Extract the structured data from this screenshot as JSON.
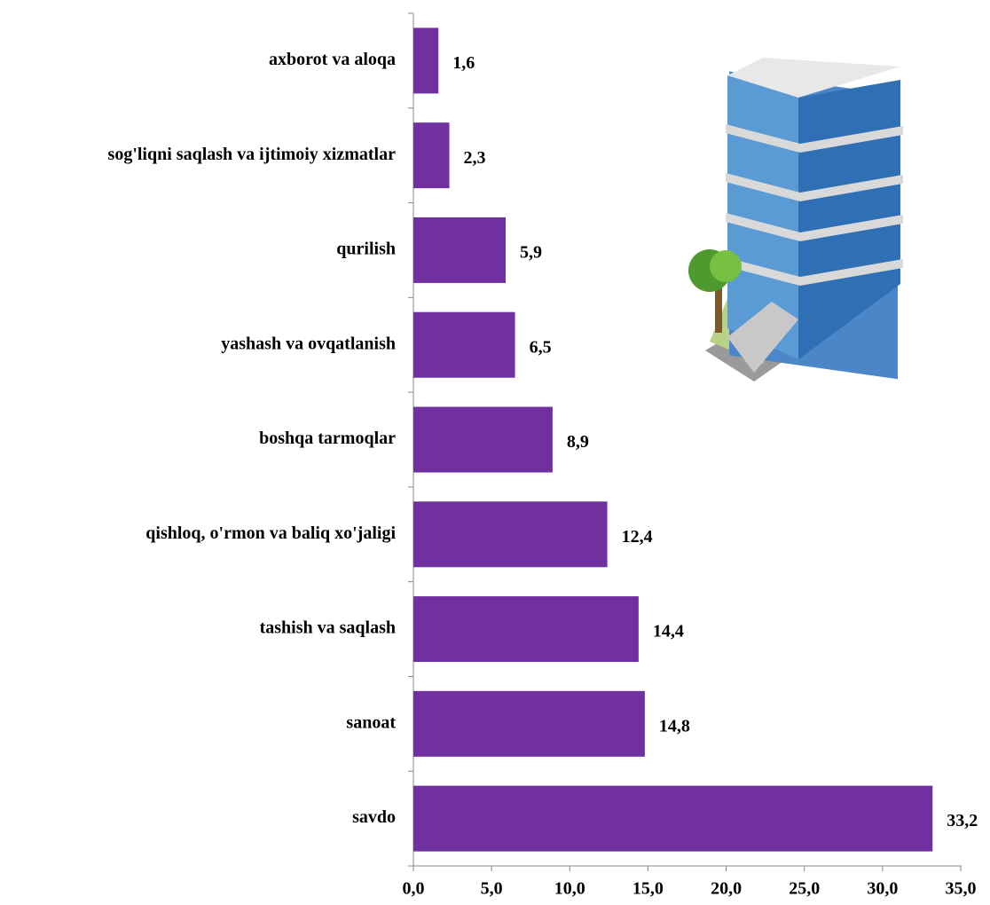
{
  "chart_data": {
    "type": "barh",
    "categories": [
      "axborot va aloqa",
      "sog'liqni saqlash va ijtimoiy xizmatlar",
      "qurilish",
      "yashash va ovqatlanish",
      "boshqa tarmoqlar",
      "qishloq, o'rmon va baliq xo'jaligi",
      "tashish va saqlash",
      "sanoat",
      "savdo"
    ],
    "values": [
      1.6,
      2.3,
      5.9,
      6.5,
      8.9,
      12.4,
      14.4,
      14.8,
      33.2
    ],
    "value_labels": [
      "1,6",
      "2,3",
      "5,9",
      "6,5",
      "8,9",
      "12,4",
      "14,4",
      "14,8",
      "33,2"
    ],
    "color": "#7030a0",
    "xlim": [
      0,
      35
    ],
    "xticks": [
      {
        "value": 0,
        "label": "0,0"
      },
      {
        "value": 5,
        "label": "5,0"
      },
      {
        "value": 10,
        "label": "10,0"
      },
      {
        "value": 15,
        "label": "15,0"
      },
      {
        "value": 20,
        "label": "20,0"
      },
      {
        "value": 25,
        "label": "25,0"
      },
      {
        "value": 30,
        "label": "30,0"
      },
      {
        "value": 35,
        "label": "35,0"
      }
    ]
  }
}
